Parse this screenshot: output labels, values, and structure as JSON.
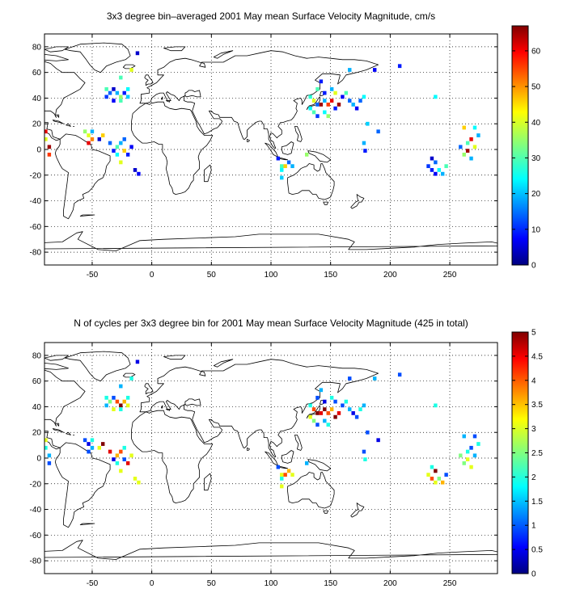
{
  "chart_data": [
    {
      "type": "heatmap",
      "title": "3x3 degree bin–averaged 2001 May mean Surface Velocity Magnitude, cm/s",
      "xlabel": "",
      "ylabel": "",
      "xlim": [
        -90,
        290
      ],
      "ylim": [
        -90,
        90
      ],
      "x_ticks": [
        -50,
        0,
        50,
        100,
        150,
        200,
        250
      ],
      "y_ticks": [
        -80,
        -60,
        -40,
        -20,
        0,
        20,
        40,
        60,
        80
      ],
      "grid": true,
      "bin_size_deg": 3,
      "colorbar": {
        "min": 0,
        "max": 67,
        "ticks": [
          0,
          10,
          20,
          30,
          40,
          50,
          60
        ],
        "colormap": "jet"
      },
      "cells": [
        [
          -12,
          75,
          5
        ],
        [
          -17,
          62,
          40
        ],
        [
          -26,
          56,
          30
        ],
        [
          -38,
          47,
          30
        ],
        [
          -35,
          44,
          15
        ],
        [
          -32,
          47,
          5
        ],
        [
          -29,
          44,
          20
        ],
        [
          -26,
          41,
          35
        ],
        [
          -23,
          44,
          10
        ],
        [
          -20,
          47,
          25
        ],
        [
          -38,
          41,
          12
        ],
        [
          -32,
          38,
          8
        ],
        [
          -26,
          38,
          30
        ],
        [
          -20,
          41,
          22
        ],
        [
          -89,
          14,
          60
        ],
        [
          -89,
          8,
          40
        ],
        [
          -86,
          2,
          65
        ],
        [
          -86,
          -4,
          55
        ],
        [
          -56,
          14,
          35
        ],
        [
          -53,
          11,
          40
        ],
        [
          -50,
          14,
          20
        ],
        [
          -50,
          8,
          50
        ],
        [
          -53,
          5,
          60
        ],
        [
          -44,
          8,
          5
        ],
        [
          -41,
          11,
          45
        ],
        [
          -35,
          5,
          15
        ],
        [
          -32,
          -1,
          10
        ],
        [
          -29,
          2,
          30
        ],
        [
          -26,
          5,
          20
        ],
        [
          -23,
          -1,
          45
        ],
        [
          -29,
          -4,
          25
        ],
        [
          -23,
          8,
          15
        ],
        [
          -20,
          -4,
          10
        ],
        [
          -17,
          2,
          8
        ],
        [
          -26,
          -10,
          40
        ],
        [
          -14,
          -16,
          5
        ],
        [
          -11,
          -19,
          8
        ],
        [
          133,
          41,
          28
        ],
        [
          136,
          38,
          40
        ],
        [
          139,
          35,
          15
        ],
        [
          142,
          35,
          65
        ],
        [
          145,
          38,
          20
        ],
        [
          148,
          35,
          55
        ],
        [
          151,
          38,
          60
        ],
        [
          154,
          32,
          10
        ],
        [
          157,
          35,
          65
        ],
        [
          160,
          41,
          8
        ],
        [
          163,
          44,
          30
        ],
        [
          166,
          38,
          15
        ],
        [
          133,
          32,
          25
        ],
        [
          136,
          29,
          30
        ],
        [
          139,
          26,
          12
        ],
        [
          145,
          29,
          25
        ],
        [
          148,
          26,
          35
        ],
        [
          154,
          44,
          40
        ],
        [
          151,
          47,
          20
        ],
        [
          145,
          44,
          10
        ],
        [
          139,
          47,
          30
        ],
        [
          142,
          53,
          10
        ],
        [
          169,
          35,
          20
        ],
        [
          172,
          32,
          8
        ],
        [
          175,
          38,
          15
        ],
        [
          178,
          41,
          25
        ],
        [
          181,
          20,
          22
        ],
        [
          190,
          14,
          15
        ],
        [
          166,
          62,
          20
        ],
        [
          187,
          62,
          8
        ],
        [
          208,
          65,
          10
        ],
        [
          238,
          41,
          25
        ],
        [
          106,
          -7,
          10
        ],
        [
          109,
          -13,
          30
        ],
        [
          112,
          -13,
          45
        ],
        [
          115,
          -10,
          15
        ],
        [
          109,
          -16,
          25
        ],
        [
          118,
          -13,
          20
        ],
        [
          109,
          -22,
          22
        ],
        [
          130,
          -4,
          35
        ],
        [
          179,
          -1,
          10
        ],
        [
          178,
          5,
          20
        ],
        [
          232,
          -13,
          12
        ],
        [
          235,
          -16,
          10
        ],
        [
          238,
          -10,
          15
        ],
        [
          238,
          -19,
          8
        ],
        [
          241,
          -16,
          25
        ],
        [
          235,
          -7,
          5
        ],
        [
          244,
          -19,
          20
        ],
        [
          247,
          -13,
          30
        ],
        [
          262,
          17,
          45
        ],
        [
          265,
          5,
          30
        ],
        [
          268,
          8,
          60
        ],
        [
          265,
          -1,
          65
        ],
        [
          262,
          -4,
          35
        ],
        [
          271,
          17,
          25
        ],
        [
          274,
          11,
          20
        ],
        [
          271,
          2,
          40
        ],
        [
          259,
          2,
          15
        ],
        [
          268,
          -7,
          20
        ]
      ]
    },
    {
      "type": "heatmap",
      "title": "N of cycles per 3x3 degree bin for 2001 May mean Surface Velocity Magnitude (425 in total)",
      "xlabel": "",
      "ylabel": "",
      "xlim": [
        -90,
        290
      ],
      "ylim": [
        -90,
        90
      ],
      "x_ticks": [
        -50,
        0,
        50,
        100,
        150,
        200,
        250
      ],
      "y_ticks": [
        -80,
        -60,
        -40,
        -20,
        0,
        20,
        40,
        60,
        80
      ],
      "grid": true,
      "bin_size_deg": 3,
      "colorbar": {
        "min": 0,
        "max": 5,
        "ticks": [
          0,
          0.5,
          1,
          1.5,
          2,
          2.5,
          3,
          3.5,
          4,
          4.5,
          5
        ],
        "colormap": "jet"
      },
      "cells": [
        [
          -12,
          75,
          0.5
        ],
        [
          -17,
          62,
          2
        ],
        [
          -26,
          56,
          1.5
        ],
        [
          -38,
          47,
          2
        ],
        [
          -35,
          44,
          2.5
        ],
        [
          -32,
          47,
          1
        ],
        [
          -29,
          44,
          4
        ],
        [
          -26,
          41,
          5
        ],
        [
          -23,
          44,
          3.5
        ],
        [
          -20,
          47,
          2
        ],
        [
          -38,
          41,
          1.5
        ],
        [
          -32,
          38,
          3
        ],
        [
          -26,
          38,
          2
        ],
        [
          -20,
          41,
          3
        ],
        [
          -89,
          14,
          3
        ],
        [
          -89,
          8,
          2
        ],
        [
          -86,
          2,
          1.5
        ],
        [
          -86,
          -4,
          1
        ],
        [
          -56,
          14,
          1
        ],
        [
          -53,
          11,
          0.5
        ],
        [
          -50,
          14,
          2
        ],
        [
          -50,
          8,
          1.5
        ],
        [
          -53,
          5,
          1
        ],
        [
          -44,
          8,
          3
        ],
        [
          -41,
          11,
          5
        ],
        [
          -35,
          5,
          4.5
        ],
        [
          -32,
          -1,
          0.5
        ],
        [
          -29,
          2,
          3.5
        ],
        [
          -26,
          5,
          4
        ],
        [
          -23,
          -1,
          1
        ],
        [
          -29,
          -4,
          2
        ],
        [
          -23,
          8,
          2
        ],
        [
          -20,
          -4,
          4.5
        ],
        [
          -17,
          2,
          3
        ],
        [
          -26,
          -10,
          3
        ],
        [
          -14,
          -16,
          3
        ],
        [
          -11,
          -19,
          3
        ],
        [
          133,
          41,
          2
        ],
        [
          136,
          38,
          4
        ],
        [
          139,
          35,
          5
        ],
        [
          142,
          35,
          4.5
        ],
        [
          145,
          38,
          5
        ],
        [
          148,
          35,
          4
        ],
        [
          151,
          38,
          3.5
        ],
        [
          154,
          32,
          5
        ],
        [
          157,
          35,
          4.5
        ],
        [
          160,
          41,
          1
        ],
        [
          163,
          44,
          2
        ],
        [
          166,
          38,
          1.5
        ],
        [
          133,
          32,
          3
        ],
        [
          136,
          29,
          2.5
        ],
        [
          139,
          26,
          1
        ],
        [
          145,
          29,
          1.5
        ],
        [
          148,
          26,
          2
        ],
        [
          154,
          44,
          1
        ],
        [
          151,
          47,
          2
        ],
        [
          145,
          44,
          0.5
        ],
        [
          139,
          47,
          1
        ],
        [
          142,
          53,
          1.5
        ],
        [
          169,
          35,
          0.5
        ],
        [
          172,
          32,
          1
        ],
        [
          175,
          38,
          2
        ],
        [
          178,
          41,
          1.5
        ],
        [
          181,
          20,
          1
        ],
        [
          190,
          14,
          0.5
        ],
        [
          166,
          62,
          1
        ],
        [
          187,
          62,
          1.5
        ],
        [
          208,
          65,
          1
        ],
        [
          238,
          41,
          2
        ],
        [
          106,
          -7,
          1
        ],
        [
          109,
          -13,
          3
        ],
        [
          112,
          -13,
          4
        ],
        [
          115,
          -10,
          3.5
        ],
        [
          109,
          -16,
          2
        ],
        [
          118,
          -13,
          3
        ],
        [
          109,
          -22,
          3
        ],
        [
          130,
          -4,
          1.5
        ],
        [
          179,
          -1,
          2
        ],
        [
          178,
          5,
          1
        ],
        [
          232,
          -13,
          3
        ],
        [
          235,
          -16,
          4
        ],
        [
          238,
          -10,
          5
        ],
        [
          238,
          -19,
          3
        ],
        [
          241,
          -16,
          2.5
        ],
        [
          235,
          -7,
          2
        ],
        [
          244,
          -19,
          3.5
        ],
        [
          247,
          -13,
          1
        ],
        [
          262,
          17,
          1.5
        ],
        [
          265,
          5,
          2
        ],
        [
          268,
          8,
          1
        ],
        [
          265,
          -1,
          3
        ],
        [
          262,
          -4,
          2.5
        ],
        [
          271,
          17,
          1
        ],
        [
          274,
          11,
          2
        ],
        [
          271,
          2,
          1.5
        ],
        [
          259,
          2,
          2.5
        ],
        [
          268,
          -7,
          3
        ]
      ]
    }
  ]
}
